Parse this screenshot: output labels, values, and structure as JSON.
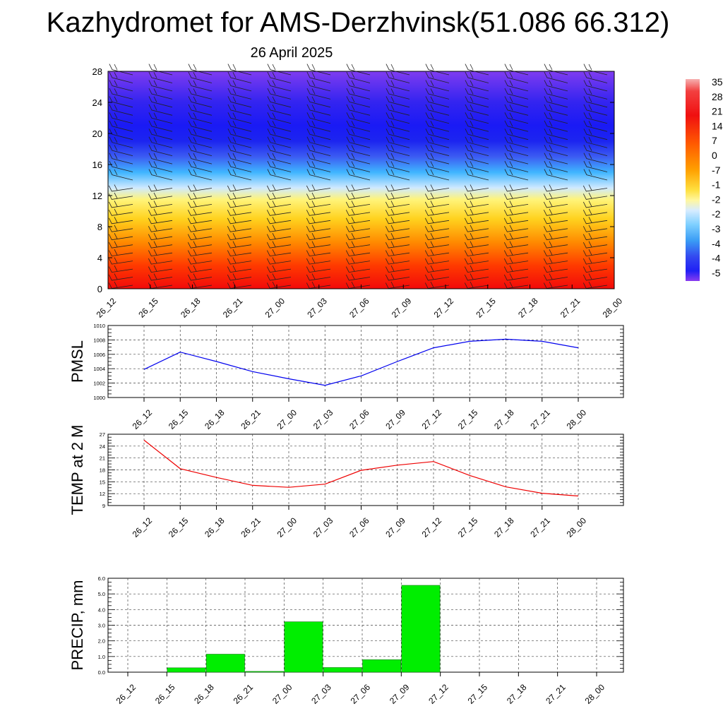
{
  "header": {
    "title": "Kazhydromet for AMS-Derzhvinsk(51.086 66.312)",
    "subtitle": "26 April 2025"
  },
  "chart_data": [
    {
      "type": "heatmap",
      "x_tick_labels": [
        "26_12",
        "26_15",
        "26_18",
        "26_21",
        "27_00",
        "27_03",
        "27_06",
        "27_09",
        "27_12",
        "27_15",
        "27_18",
        "27_21",
        "28_00"
      ],
      "y_ticks": [
        0,
        4,
        8,
        12,
        16,
        20,
        24,
        28
      ],
      "ylim": [
        0,
        28
      ],
      "colorbar_labels": [
        "35",
        "28",
        "21",
        "14",
        "7",
        "0",
        "-7",
        "-1",
        "-2",
        "-2",
        "-3",
        "-4",
        "-4",
        "-5"
      ],
      "color_stops": [
        {
          "level": 0,
          "value": 31,
          "color": "#f20a0a"
        },
        {
          "level": 3,
          "value": 24,
          "color": "#ff3a00"
        },
        {
          "level": 6,
          "value": 14,
          "color": "#ff8a00"
        },
        {
          "level": 9,
          "value": 4,
          "color": "#ffd21e"
        },
        {
          "level": 11.5,
          "value": -5,
          "color": "#fff47a"
        },
        {
          "level": 13,
          "value": -14,
          "color": "#cfe9ff"
        },
        {
          "level": 15,
          "value": -25,
          "color": "#3fb5ff"
        },
        {
          "level": 17,
          "value": -38,
          "color": "#3c5cf2"
        },
        {
          "level": 19,
          "value": -48,
          "color": "#1c25f0"
        },
        {
          "level": 21,
          "value": -55,
          "color": "#1a1af5"
        },
        {
          "level": 24,
          "value": -50,
          "color": "#3324f0"
        },
        {
          "level": 28,
          "value": -46,
          "color": "#7f3cf0"
        }
      ],
      "wind_barbs": "present",
      "grid": false
    },
    {
      "type": "line",
      "ylabel": "PMSL",
      "ylim": [
        1000,
        1010
      ],
      "y_ticks": [
        1000,
        1002,
        1004,
        1006,
        1008,
        1010
      ],
      "x_tick_labels": [
        "26_12",
        "26_15",
        "26_18",
        "26_21",
        "27_00",
        "27_03",
        "27_06",
        "27_09",
        "27_12",
        "27_15",
        "27_18",
        "27_21",
        "28_00"
      ],
      "series": [
        {
          "values": [
            1003.9,
            1006.3,
            1005.0,
            1003.6,
            1002.6,
            1001.7,
            1003.0,
            1005.0,
            1006.9,
            1007.8,
            1008.1,
            1007.8,
            1006.9
          ],
          "color": "#0000ee"
        }
      ],
      "grid": true
    },
    {
      "type": "line",
      "ylabel": "TEMP at 2 M",
      "ylim": [
        9,
        27
      ],
      "y_ticks": [
        9,
        12,
        15,
        18,
        21,
        24,
        27
      ],
      "x_tick_labels": [
        "26_12",
        "26_15",
        "26_18",
        "26_21",
        "27_00",
        "27_03",
        "27_06",
        "27_09",
        "27_12",
        "27_15",
        "27_18",
        "27_21",
        "28_00"
      ],
      "series": [
        {
          "values": [
            25.5,
            18.3,
            16.1,
            14.1,
            13.6,
            14.4,
            17.9,
            19.2,
            20.1,
            16.6,
            13.7,
            12.1,
            11.4
          ],
          "color": "#ee0000"
        }
      ],
      "grid": true
    },
    {
      "type": "bar",
      "ylabel": "PRECIP, mm",
      "ylim": [
        0,
        6
      ],
      "y_ticks": [
        "0.0",
        "1.0",
        "2.0",
        "3.0",
        "4.0",
        "5.0",
        "6.0"
      ],
      "categories": [
        "26_12",
        "26_15",
        "26_18",
        "26_21",
        "27_00",
        "27_03",
        "27_06",
        "27_09",
        "27_12",
        "27_15",
        "27_18",
        "27_21",
        "28_00"
      ],
      "values": [
        0,
        0.28,
        1.15,
        0.05,
        3.22,
        0.3,
        0.8,
        5.55,
        0,
        0,
        0,
        0,
        0
      ],
      "color": "#00ee00",
      "grid": true
    }
  ]
}
